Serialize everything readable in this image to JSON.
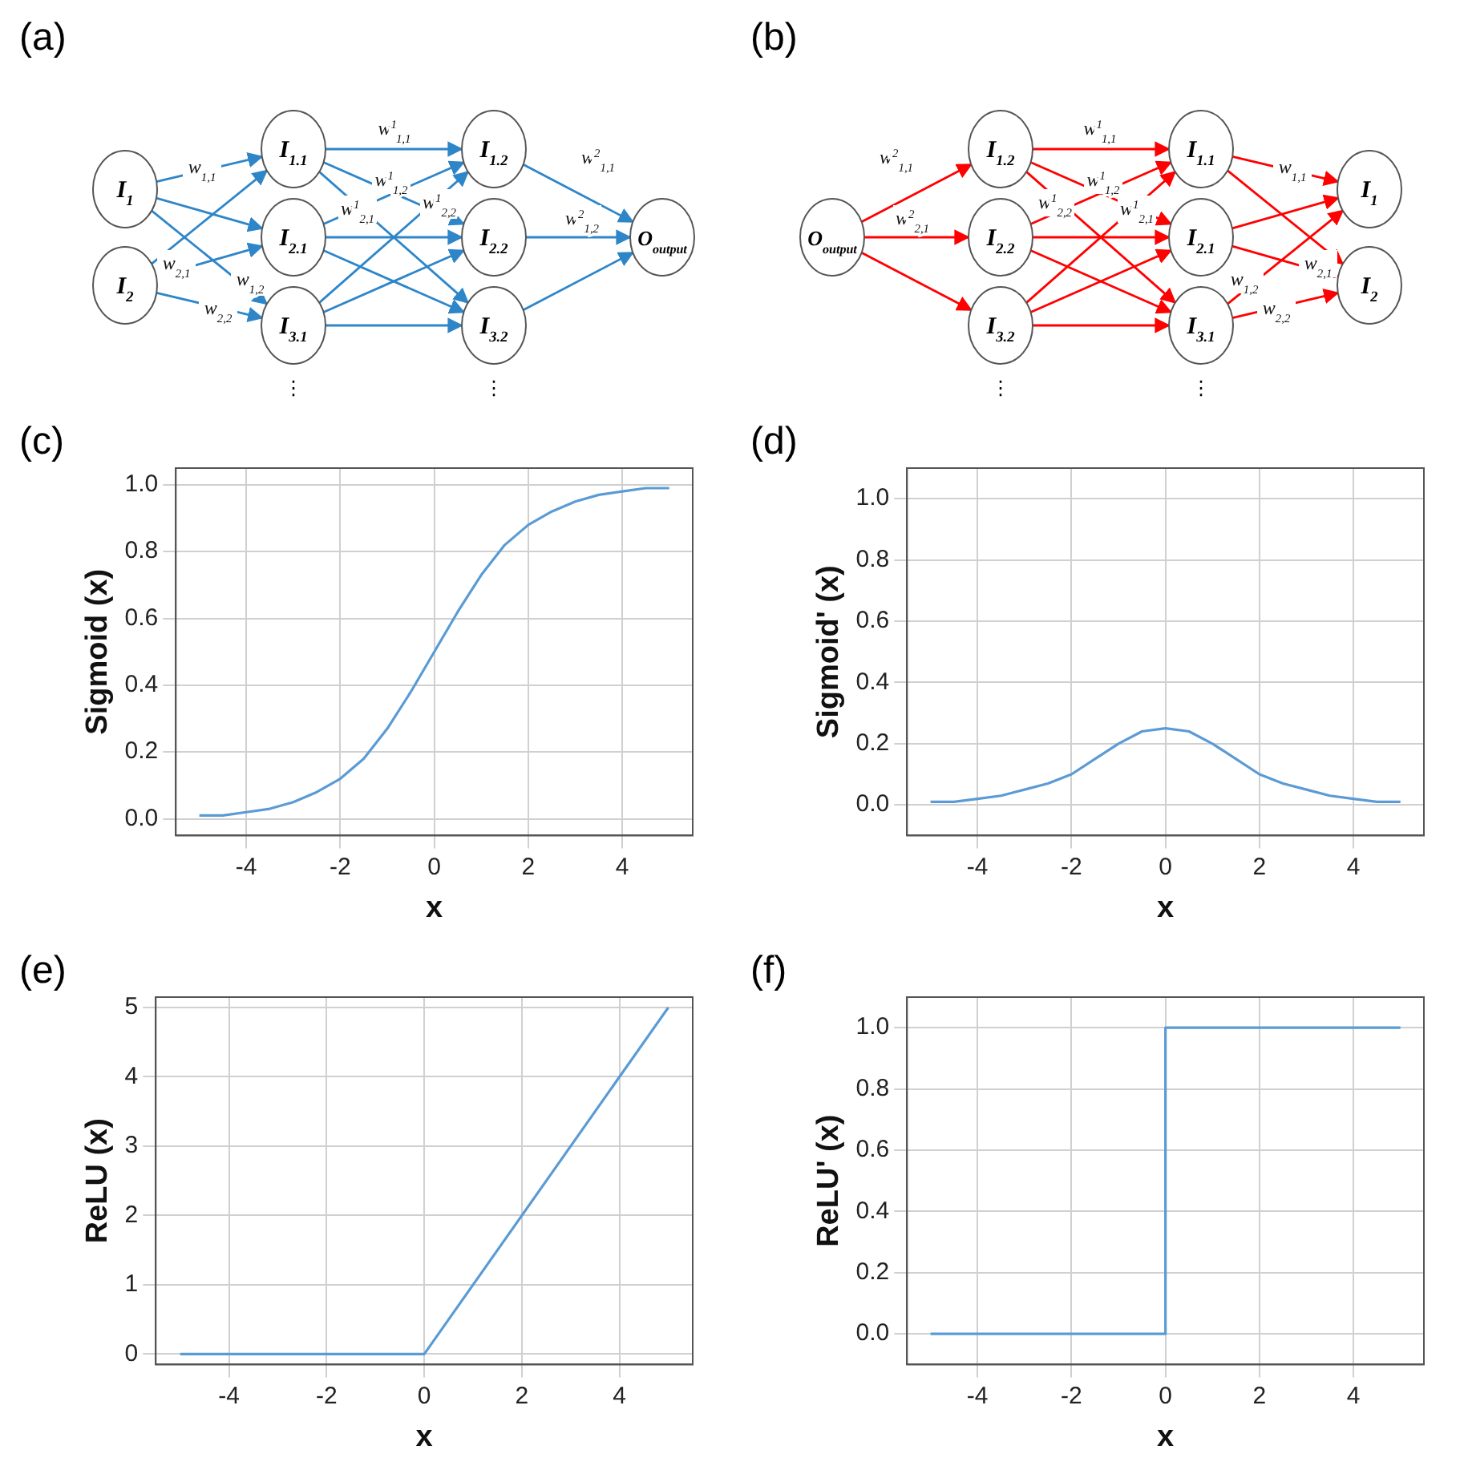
{
  "chart_data": [
    {
      "type": "other",
      "title": "(a)",
      "color": "#2e86c9",
      "annotations": [
        "I$_{1}$",
        "I$_{2}$",
        "I$_{1.1}$",
        "I$_{2.1}$",
        "I$_{3.1}$",
        "I$_{1.2}$",
        "I$_{2.2}$",
        "I$_{3.2}$",
        "O$_{output}$",
        "w$_{1,1}$",
        "w$_{2,1}$",
        "w$_{2,2}$",
        "w$_{1,2}$",
        "w$^{1}$$_{1,1}$",
        "w$^{1}$$_{1,2}$",
        "w$^{1}$$_{2,1}$",
        "w$^{1}$$_{2,2}$",
        "w$^{2}$$_{1,1}$",
        "w$^{2}$$_{1,2}$",
        "⋮",
        "⋮"
      ]
    },
    {
      "type": "other",
      "title": "(b)",
      "color": "#ff0000",
      "annotations": [
        "I$_{1}$",
        "I$_{2}$",
        "I$_{1.1}$",
        "I$_{2.1}$",
        "I$_{3.1}$",
        "I$_{1.2}$",
        "I$_{2.2}$",
        "I$_{3.2}$",
        "O$_{output}$",
        "w$_{1,1}$",
        "w$_{2,1}$",
        "w$_{2,2}$",
        "w$_{1,2}$",
        "w$^{1}$$_{1,1}$",
        "w$^{1}$$_{1,2}$",
        "w$^{1}$$_{2,1}$",
        "w$^{1}$$_{2,2}$",
        "w$^{2}$$_{1,1}$",
        "w$^{2}$$_{2,1}$",
        "⋮",
        "⋮"
      ]
    },
    {
      "type": "line",
      "title": "(c)",
      "xlabel": "x",
      "ylabel": "Sigmoid (x)",
      "grid": true,
      "marker": "none",
      "x": [
        -5,
        -4.5,
        -4,
        -3.5,
        -3,
        -2.5,
        -2,
        -1.5,
        -1,
        -0.5,
        0,
        0.5,
        1,
        1.5,
        2,
        2.5,
        3,
        3.5,
        4,
        4.5,
        5
      ],
      "series": [
        {
          "color": "#5b9bd5",
          "values": [
            0.01,
            0.01,
            0.02,
            0.03,
            0.05,
            0.08,
            0.12,
            0.18,
            0.27,
            0.38,
            0.5,
            0.62,
            0.73,
            0.82,
            0.88,
            0.92,
            0.95,
            0.97,
            0.98,
            0.99,
            0.99
          ]
        }
      ],
      "xlim": [
        -5.5,
        5.5
      ],
      "xticks": [
        -4,
        -2,
        0,
        2,
        4
      ],
      "ylim": [
        -0.05,
        1.05
      ],
      "yticks": [
        {
          "value": 0,
          "label": "0.0"
        },
        {
          "value": 0.2,
          "label": "0.2"
        },
        {
          "value": 0.4,
          "label": "0.4"
        },
        {
          "value": 0.6,
          "label": "0.6"
        },
        {
          "value": 0.8,
          "label": "0.8"
        },
        {
          "value": 1,
          "label": "1.0"
        }
      ]
    },
    {
      "type": "line",
      "title": "(d)",
      "xlabel": "x",
      "ylabel": "Sigmoid' (x)",
      "grid": true,
      "marker": "none",
      "x": [
        -5,
        -4.5,
        -4,
        -3.5,
        -3,
        -2.5,
        -2,
        -1.5,
        -1,
        -0.5,
        0,
        0.5,
        1,
        1.5,
        2,
        2.5,
        3,
        3.5,
        4,
        4.5,
        5
      ],
      "series": [
        {
          "color": "#5b9bd5",
          "values": [
            0.01,
            0.01,
            0.02,
            0.03,
            0.05,
            0.07,
            0.1,
            0.15,
            0.2,
            0.24,
            0.25,
            0.24,
            0.2,
            0.15,
            0.1,
            0.07,
            0.05,
            0.03,
            0.02,
            0.01,
            0.01
          ]
        }
      ],
      "xlim": [
        -5.5,
        5.5
      ],
      "xticks": [
        -4,
        -2,
        0,
        2,
        4
      ],
      "ylim": [
        -0.1,
        1.1
      ],
      "yticks": [
        {
          "value": 0,
          "label": "0.0"
        },
        {
          "value": 0.2,
          "label": "0.2"
        },
        {
          "value": 0.4,
          "label": "0.4"
        },
        {
          "value": 0.6,
          "label": "0.6"
        },
        {
          "value": 0.8,
          "label": "0.8"
        },
        {
          "value": 1,
          "label": "1.0"
        }
      ]
    },
    {
      "type": "line",
      "title": "(e)",
      "xlabel": "x",
      "ylabel": "ReLU (x)",
      "grid": true,
      "marker": "none",
      "x": [
        -5,
        0,
        5
      ],
      "series": [
        {
          "color": "#5b9bd5",
          "values": [
            0,
            0,
            5
          ]
        }
      ],
      "xlim": [
        -5.5,
        5.5
      ],
      "xticks": [
        -4,
        -2,
        0,
        2,
        4
      ],
      "ylim": [
        -0.15,
        5.15
      ],
      "yticks": [
        0,
        1,
        2,
        3,
        4,
        5
      ]
    },
    {
      "type": "line",
      "title": "(f)",
      "xlabel": "x",
      "ylabel": "ReLU' (x)",
      "grid": true,
      "marker": "none",
      "x": [
        -5,
        0,
        0,
        5
      ],
      "series": [
        {
          "color": "#5b9bd5",
          "values": [
            0,
            0,
            1,
            1
          ]
        }
      ],
      "xlim": [
        -5.5,
        5.5
      ],
      "xticks": [
        -4,
        -2,
        0,
        2,
        4
      ],
      "ylim": [
        -0.1,
        1.1
      ],
      "yticks": [
        {
          "value": 0,
          "label": "0.0"
        },
        {
          "value": 0.2,
          "label": "0.2"
        },
        {
          "value": 0.4,
          "label": "0.4"
        },
        {
          "value": 0.6,
          "label": "0.6"
        },
        {
          "value": 0.8,
          "label": "0.8"
        },
        {
          "value": 1,
          "label": "1.0"
        }
      ]
    }
  ]
}
